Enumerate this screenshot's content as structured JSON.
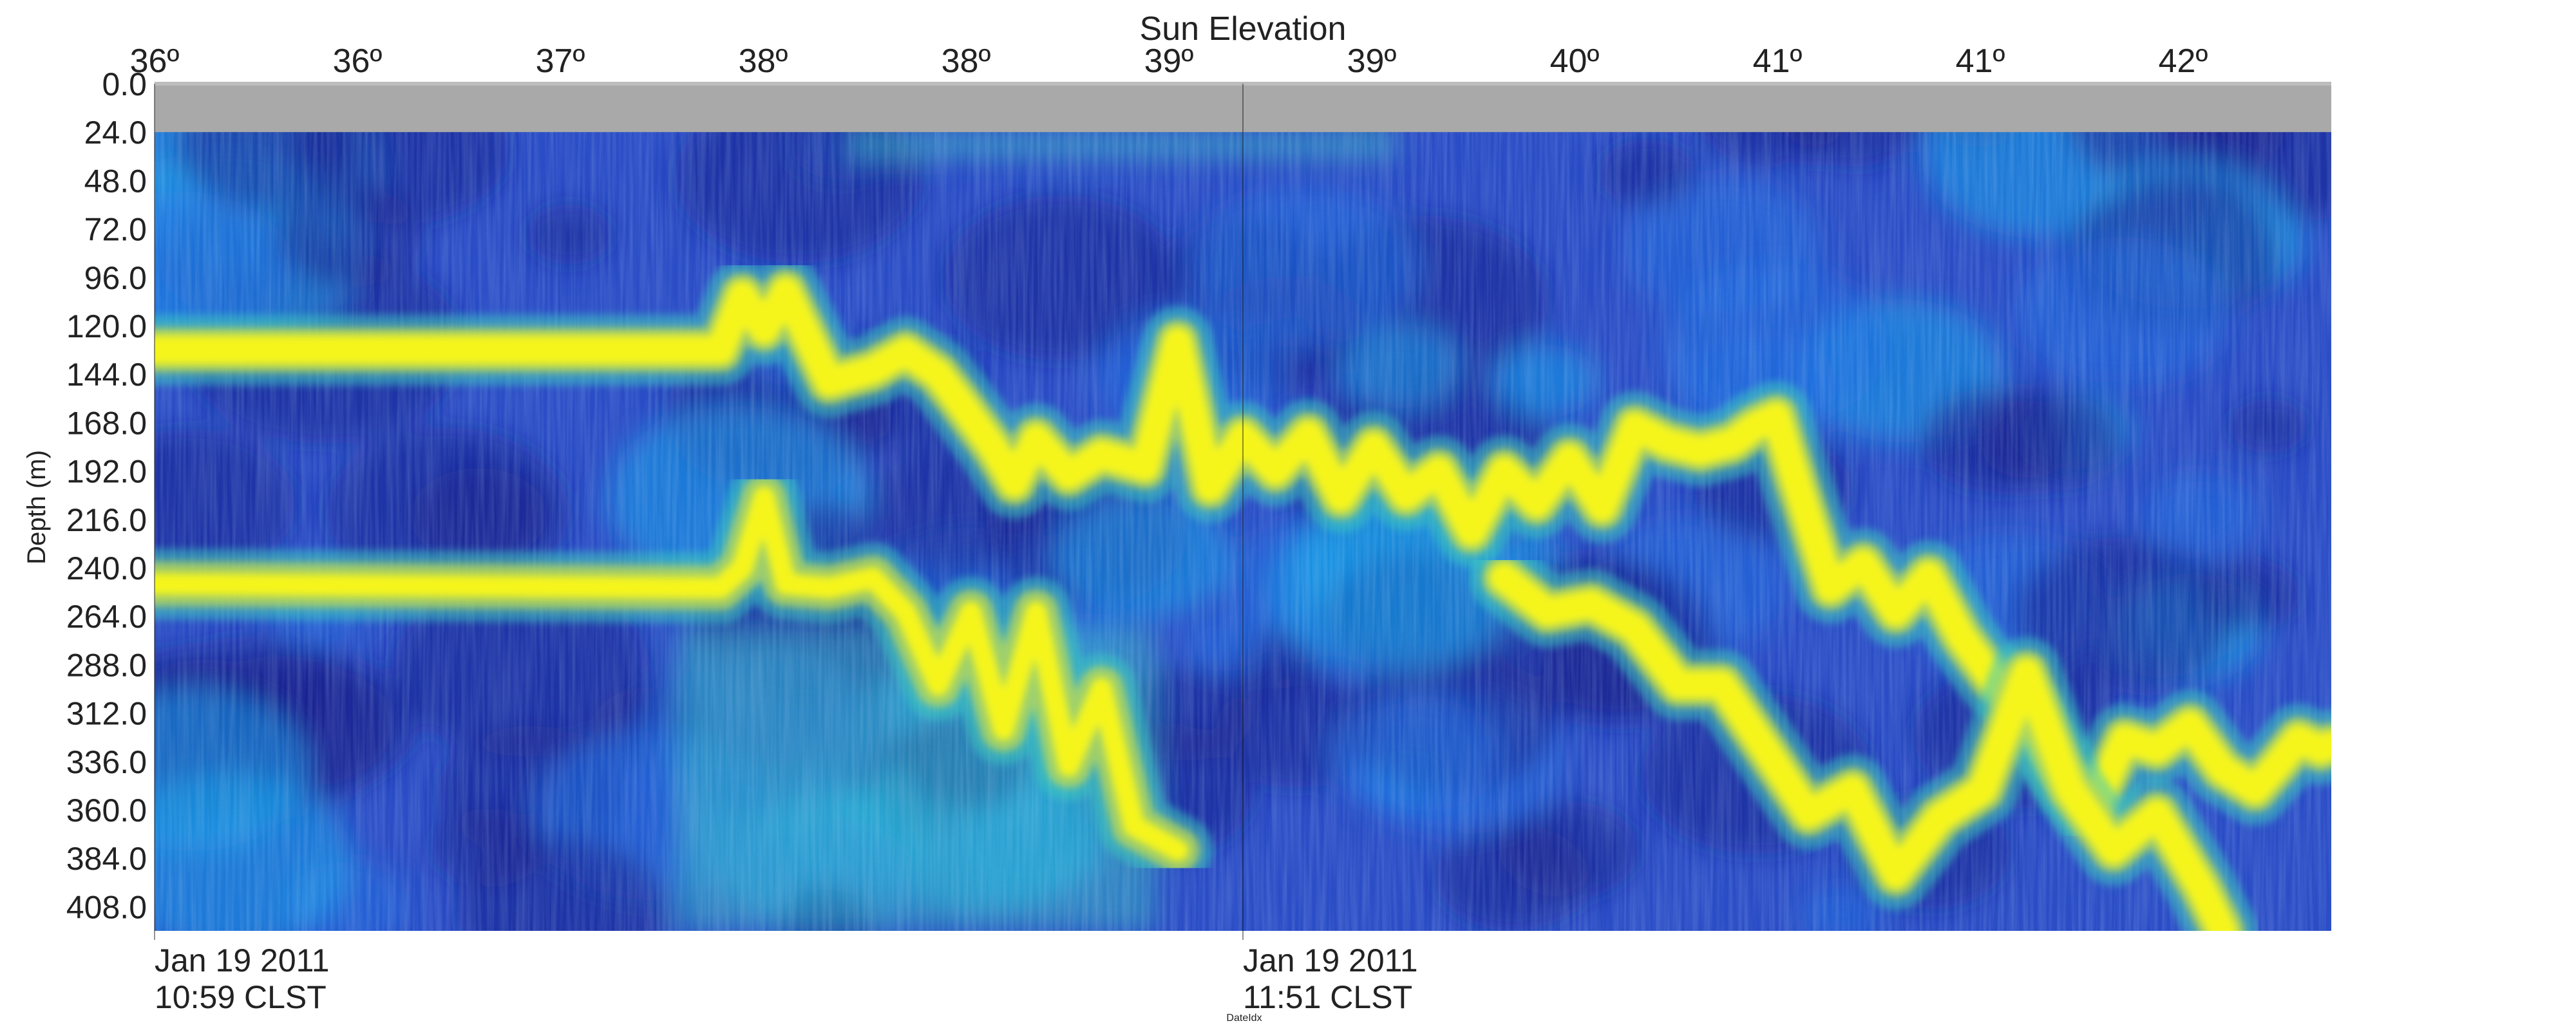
{
  "chart_data": {
    "type": "heatmap",
    "title": "",
    "top_axis": {
      "label": "Sun Elevation",
      "tick_labels": [
        "36º",
        "36º",
        "37º",
        "38º",
        "38º",
        "39º",
        "39º",
        "40º",
        "41º",
        "41º",
        "42º"
      ]
    },
    "ylabel": "Depth (m)",
    "y_ticks": [
      0,
      24,
      48,
      72,
      96,
      120,
      144,
      168,
      192,
      216,
      240,
      264,
      288,
      312,
      336,
      360,
      384,
      408
    ],
    "y_tick_labels": [
      "0.0",
      "24.0",
      "48.0",
      "72.0",
      "96.0",
      "120.0",
      "144.0",
      "168.0",
      "192.0",
      "216.0",
      "240.0",
      "264.0",
      "288.0",
      "312.0",
      "336.0",
      "360.0",
      "384.0",
      "408.0"
    ],
    "ylim": [
      0,
      420
    ],
    "xlabel": "DateIdx",
    "x_ticks": [
      {
        "line1": "Jan 19 2011",
        "line2": "10:59 CLST",
        "pos": 0.0
      },
      {
        "line1": "Jan 19 2011",
        "line2": "11:51 CLST",
        "pos": 0.5
      }
    ],
    "no_data_band": [
      0,
      24
    ],
    "colormap": [
      "#1a1f8c",
      "#2a3db8",
      "#1f6fe0",
      "#1aa0e8",
      "#3cc8c0",
      "#b8d858",
      "#f5f51a"
    ],
    "bright_layers": [
      {
        "name": "",
        "points": [
          [
            0.0,
            132
          ],
          [
            0.26,
            132
          ],
          [
            0.27,
            105
          ],
          [
            0.28,
            122
          ],
          [
            0.29,
            103
          ],
          [
            0.31,
            148
          ],
          [
            0.33,
            142
          ],
          [
            0.345,
            133
          ],
          [
            0.36,
            144
          ],
          [
            0.37,
            158
          ],
          [
            0.385,
            180
          ],
          [
            0.395,
            198
          ],
          [
            0.405,
            176
          ],
          [
            0.42,
            194
          ],
          [
            0.435,
            184
          ],
          [
            0.455,
            190
          ],
          [
            0.47,
            128
          ],
          [
            0.485,
            200
          ],
          [
            0.5,
            175
          ],
          [
            0.515,
            192
          ],
          [
            0.53,
            174
          ],
          [
            0.545,
            205
          ],
          [
            0.56,
            180
          ],
          [
            0.575,
            204
          ],
          [
            0.59,
            192
          ],
          [
            0.605,
            222
          ],
          [
            0.62,
            192
          ],
          [
            0.635,
            208
          ],
          [
            0.65,
            186
          ],
          [
            0.665,
            210
          ],
          [
            0.68,
            170
          ],
          [
            0.695,
            178
          ],
          [
            0.71,
            182
          ],
          [
            0.725,
            178
          ],
          [
            0.735,
            170
          ],
          [
            0.745,
            165
          ],
          [
            0.755,
            200
          ],
          [
            0.77,
            250
          ],
          [
            0.785,
            238
          ],
          [
            0.8,
            262
          ],
          [
            0.815,
            244
          ],
          [
            0.83,
            274
          ],
          [
            0.845,
            296
          ],
          [
            0.86,
            310
          ],
          [
            0.875,
            340
          ],
          [
            0.89,
            360
          ],
          [
            0.905,
            325
          ],
          [
            0.92,
            330
          ],
          [
            0.935,
            318
          ],
          [
            0.95,
            340
          ],
          [
            0.965,
            350
          ],
          [
            0.975,
            338
          ],
          [
            0.985,
            325
          ],
          [
            0.995,
            330
          ],
          [
            1.0,
            328
          ]
        ]
      },
      {
        "name": "",
        "points": [
          [
            0.0,
            248
          ],
          [
            0.26,
            250
          ],
          [
            0.27,
            240
          ],
          [
            0.28,
            205
          ],
          [
            0.29,
            248
          ],
          [
            0.31,
            250
          ],
          [
            0.33,
            245
          ],
          [
            0.345,
            262
          ],
          [
            0.36,
            298
          ],
          [
            0.375,
            262
          ],
          [
            0.39,
            320
          ],
          [
            0.405,
            262
          ],
          [
            0.42,
            338
          ],
          [
            0.435,
            300
          ],
          [
            0.45,
            368
          ],
          [
            0.47,
            380
          ]
        ]
      },
      {
        "name": "",
        "points": [
          [
            0.62,
            245
          ],
          [
            0.64,
            262
          ],
          [
            0.66,
            258
          ],
          [
            0.68,
            270
          ],
          [
            0.7,
            298
          ],
          [
            0.72,
            298
          ],
          [
            0.74,
            330
          ],
          [
            0.76,
            362
          ],
          [
            0.78,
            350
          ],
          [
            0.8,
            392
          ],
          [
            0.82,
            364
          ],
          [
            0.84,
            350
          ],
          [
            0.86,
            292
          ],
          [
            0.88,
            350
          ],
          [
            0.9,
            380
          ],
          [
            0.92,
            362
          ],
          [
            0.94,
            398
          ],
          [
            0.95,
            420
          ]
        ]
      }
    ]
  }
}
